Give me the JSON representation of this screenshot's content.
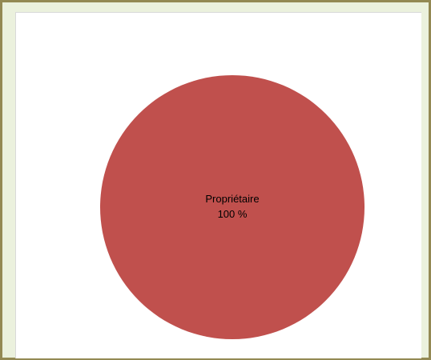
{
  "chart_data": {
    "type": "pie",
    "title": "",
    "slices": [
      {
        "label": "Propriétaire",
        "value": 100,
        "value_label": "100 %",
        "color": "#c0504d"
      }
    ],
    "legend": "none"
  },
  "colors": {
    "frame_border": "#938953",
    "frame_background": "#ebf1dd",
    "plot_background": "#ffffff"
  }
}
